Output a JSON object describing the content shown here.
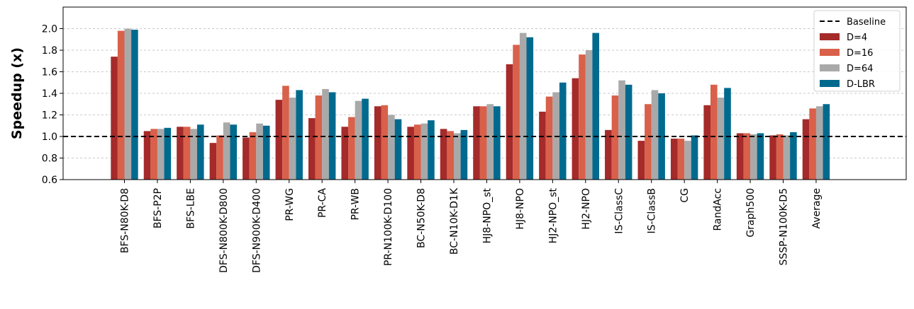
{
  "chart_data": {
    "type": "bar",
    "title": "",
    "xlabel": "",
    "ylabel": "Speedup (x)",
    "ylim": [
      0.6,
      2.2
    ],
    "yticks": [
      0.6,
      0.8,
      1.0,
      1.2,
      1.4,
      1.6,
      1.8,
      2.0
    ],
    "ytick_labels": [
      "0.6",
      "0.8",
      "1.0",
      "1.2",
      "1.4",
      "1.6",
      "1.8",
      "2.0"
    ],
    "grid": "horizontal dashed",
    "legend_position": "top-right",
    "baseline": {
      "name": "Baseline",
      "value": 1.0,
      "style": "dashed",
      "color": "#000000"
    },
    "categories": [
      "BFS-N80K-D8",
      "BFS-P2P",
      "BFS-LBE",
      "DFS-N800K-D800",
      "DFS-N900K-D400",
      "PR-WG",
      "PR-CA",
      "PR-WB",
      "PR-N100K-D100",
      "BC-N50K-D8",
      "BC-N10K-D1K",
      "HJ8-NPO_st",
      "HJ8-NPO",
      "HJ2-NPO_st",
      "HJ2-NPO",
      "IS-ClassC",
      "IS-ClassB",
      "CG",
      "RandAcc",
      "Graph500",
      "SSSP-N100K-D5",
      "Average"
    ],
    "series": [
      {
        "name": "D=4",
        "color": "#a52a2a",
        "values": [
          1.74,
          1.05,
          1.09,
          0.94,
          0.99,
          1.34,
          1.17,
          1.09,
          1.28,
          1.09,
          1.07,
          1.28,
          1.67,
          1.23,
          1.54,
          1.06,
          0.96,
          0.98,
          1.29,
          1.03,
          1.01,
          1.16
        ]
      },
      {
        "name": "D=16",
        "color": "#d9604a",
        "values": [
          1.98,
          1.07,
          1.09,
          1.01,
          1.04,
          1.47,
          1.38,
          1.18,
          1.29,
          1.11,
          1.05,
          1.28,
          1.85,
          1.37,
          1.76,
          1.38,
          1.3,
          0.98,
          1.48,
          1.03,
          1.02,
          1.26
        ]
      },
      {
        "name": "D=64",
        "color": "#a9a9a9",
        "values": [
          2.0,
          1.07,
          1.07,
          1.13,
          1.12,
          1.36,
          1.44,
          1.33,
          1.2,
          1.12,
          1.03,
          1.3,
          1.96,
          1.41,
          1.8,
          1.52,
          1.43,
          0.96,
          1.36,
          1.02,
          1.01,
          1.28
        ]
      },
      {
        "name": "D-LBR",
        "color": "#006a8e",
        "values": [
          1.99,
          1.08,
          1.11,
          1.11,
          1.1,
          1.43,
          1.41,
          1.35,
          1.16,
          1.15,
          1.06,
          1.28,
          1.92,
          1.5,
          1.96,
          1.48,
          1.4,
          1.01,
          1.45,
          1.03,
          1.04,
          1.3
        ]
      }
    ]
  }
}
